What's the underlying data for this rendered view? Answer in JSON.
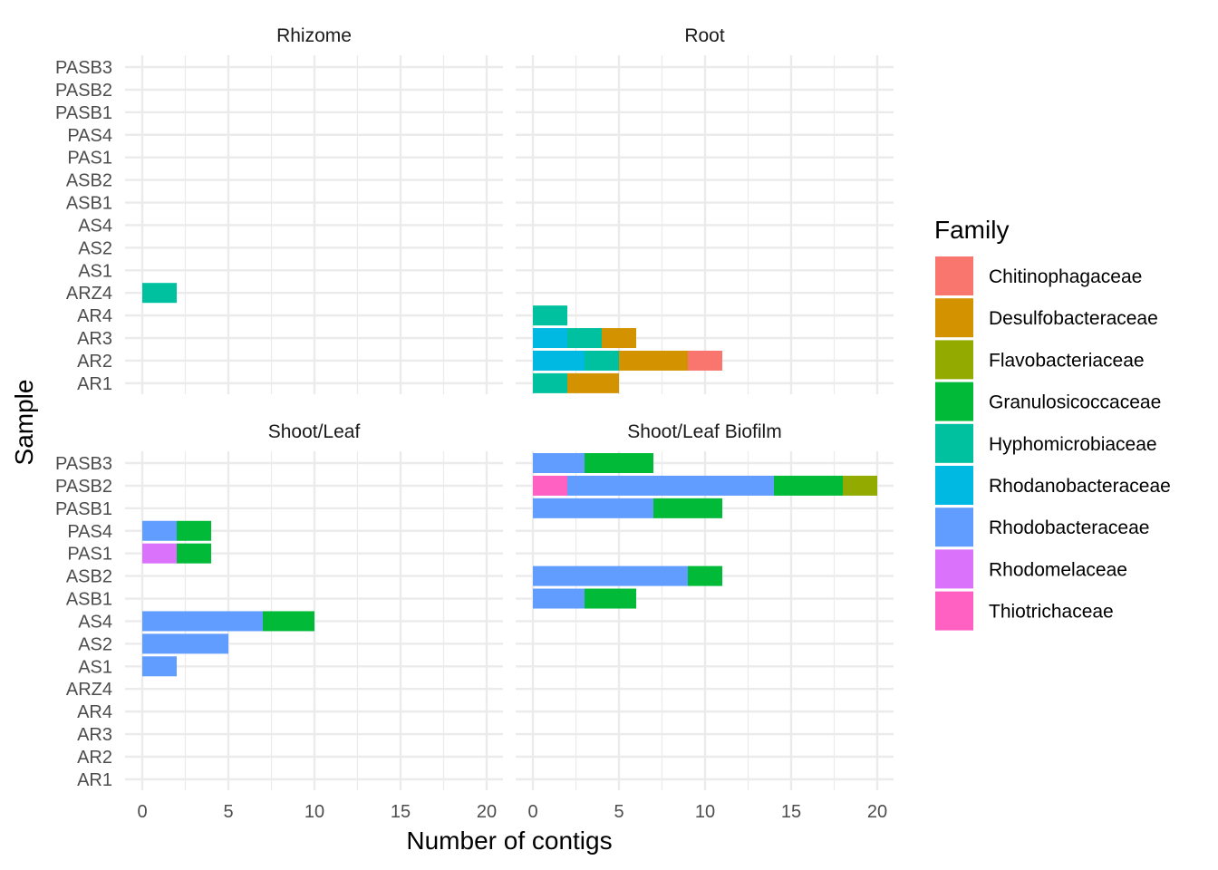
{
  "chart_data": {
    "type": "bar",
    "orientation": "horizontal",
    "stacked": true,
    "xlabel": "Number of contigs",
    "ylabel": "Sample",
    "xlim": [
      0,
      20
    ],
    "xticks": [
      0,
      5,
      10,
      15,
      20
    ],
    "grid": true,
    "legend": {
      "title": "Family",
      "position": "right",
      "entries": [
        {
          "name": "Chitinophagaceae",
          "color": "#F8766D"
        },
        {
          "name": "Desulfobacteraceae",
          "color": "#D39200"
        },
        {
          "name": "Flavobacteriaceae",
          "color": "#93AA00"
        },
        {
          "name": "Granulosicoccaceae",
          "color": "#00BA38"
        },
        {
          "name": "Hyphomicrobiaceae",
          "color": "#00C19F"
        },
        {
          "name": "Rhodanobacteraceae",
          "color": "#00B9E3"
        },
        {
          "name": "Rhodobacteraceae",
          "color": "#619CFF"
        },
        {
          "name": "Rhodomelaceae",
          "color": "#DB72FB"
        },
        {
          "name": "Thiotrichaceae",
          "color": "#FF61C3"
        }
      ]
    },
    "samples": [
      "PASB3",
      "PASB2",
      "PASB1",
      "PAS4",
      "PAS1",
      "ASB2",
      "ASB1",
      "AS4",
      "AS2",
      "AS1",
      "ARZ4",
      "AR4",
      "AR3",
      "AR2",
      "AR1"
    ],
    "facets": [
      {
        "title": "Rhizome",
        "bars": [
          {
            "sample": "ARZ4",
            "segments": [
              {
                "family": "Hyphomicrobiaceae",
                "value": 2
              }
            ]
          }
        ]
      },
      {
        "title": "Root",
        "bars": [
          {
            "sample": "AR4",
            "segments": [
              {
                "family": "Hyphomicrobiaceae",
                "value": 2
              }
            ]
          },
          {
            "sample": "AR3",
            "segments": [
              {
                "family": "Rhodanobacteraceae",
                "value": 2
              },
              {
                "family": "Hyphomicrobiaceae",
                "value": 2
              },
              {
                "family": "Desulfobacteraceae",
                "value": 2
              }
            ]
          },
          {
            "sample": "AR2",
            "segments": [
              {
                "family": "Rhodanobacteraceae",
                "value": 3
              },
              {
                "family": "Hyphomicrobiaceae",
                "value": 2
              },
              {
                "family": "Desulfobacteraceae",
                "value": 4
              },
              {
                "family": "Chitinophagaceae",
                "value": 2
              }
            ]
          },
          {
            "sample": "AR1",
            "segments": [
              {
                "family": "Hyphomicrobiaceae",
                "value": 2
              },
              {
                "family": "Desulfobacteraceae",
                "value": 3
              }
            ]
          }
        ]
      },
      {
        "title": "Shoot/Leaf",
        "bars": [
          {
            "sample": "PAS4",
            "segments": [
              {
                "family": "Rhodobacteraceae",
                "value": 2
              },
              {
                "family": "Granulosicoccaceae",
                "value": 2
              }
            ]
          },
          {
            "sample": "PAS1",
            "segments": [
              {
                "family": "Rhodomelaceae",
                "value": 2
              },
              {
                "family": "Granulosicoccaceae",
                "value": 2
              }
            ]
          },
          {
            "sample": "AS4",
            "segments": [
              {
                "family": "Rhodobacteraceae",
                "value": 7
              },
              {
                "family": "Granulosicoccaceae",
                "value": 3
              }
            ]
          },
          {
            "sample": "AS2",
            "segments": [
              {
                "family": "Rhodobacteraceae",
                "value": 5
              }
            ]
          },
          {
            "sample": "AS1",
            "segments": [
              {
                "family": "Rhodobacteraceae",
                "value": 2
              }
            ]
          }
        ]
      },
      {
        "title": "Shoot/Leaf Biofilm",
        "bars": [
          {
            "sample": "PASB3",
            "segments": [
              {
                "family": "Rhodobacteraceae",
                "value": 3
              },
              {
                "family": "Granulosicoccaceae",
                "value": 4
              }
            ]
          },
          {
            "sample": "PASB2",
            "segments": [
              {
                "family": "Thiotrichaceae",
                "value": 2
              },
              {
                "family": "Rhodobacteraceae",
                "value": 12
              },
              {
                "family": "Granulosicoccaceae",
                "value": 4
              },
              {
                "family": "Flavobacteriaceae",
                "value": 2
              }
            ]
          },
          {
            "sample": "PASB1",
            "segments": [
              {
                "family": "Rhodobacteraceae",
                "value": 7
              },
              {
                "family": "Granulosicoccaceae",
                "value": 4
              }
            ]
          },
          {
            "sample": "ASB2",
            "segments": [
              {
                "family": "Rhodobacteraceae",
                "value": 9
              },
              {
                "family": "Granulosicoccaceae",
                "value": 2
              }
            ]
          },
          {
            "sample": "ASB1",
            "segments": [
              {
                "family": "Rhodobacteraceae",
                "value": 3
              },
              {
                "family": "Granulosicoccaceae",
                "value": 3
              }
            ]
          }
        ]
      }
    ]
  }
}
